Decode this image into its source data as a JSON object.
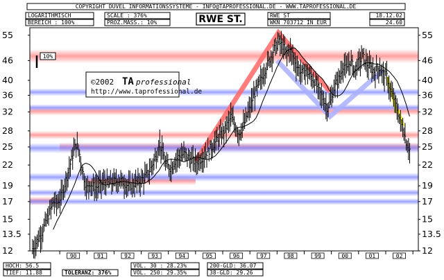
{
  "header": {
    "copyright": "COPYRIGHT  DÜVEL INFORMATIONSSYSTEME  -  INFO@TAPROFESSIONAL.DE  -  WWW.TAPROFESSIONAL.DE",
    "scale_type": "LOGARITHMISCH",
    "range_label": "BEREICH  :  100%",
    "scale": "SCALE  :  376%",
    "prozmass": "PROZ.MASS.:  10%",
    "symbol": "RWE ST.",
    "ticker": "RWE ST",
    "wkn": "WKN 703712    IN EUR",
    "date": "18.12.02",
    "last_price": "24.60"
  },
  "chart_data": {
    "type": "candlestick",
    "ylim": [
      12,
      58
    ],
    "log_scale": true,
    "yticks": [
      "55",
      "46",
      "40",
      "36",
      "32",
      "28",
      "25",
      "22",
      "19",
      "17",
      "15",
      "13.5",
      "12"
    ],
    "ytick_values": [
      55,
      46,
      40,
      36,
      32,
      28,
      25,
      22,
      19,
      17,
      15,
      13.5,
      12
    ],
    "xtick_labels": [
      "90",
      "91",
      "92",
      "93",
      "94",
      "95",
      "96",
      "97",
      "98",
      "99",
      "00",
      "01",
      "02"
    ],
    "xtick_years": [
      1990,
      1991,
      1992,
      1993,
      1994,
      1995,
      1996,
      1997,
      1998,
      1999,
      2000,
      2001,
      2002
    ],
    "x_range": [
      1988.9,
      2003.2
    ],
    "scale_box_label": "10%",
    "watermark_year": "©2002",
    "watermark_brand": "TA",
    "watermark_brand_suffix": "professional",
    "watermark_url": "http://www.taprofessional.de",
    "price_keypoints": [
      [
        1989.0,
        12.2
      ],
      [
        1989.15,
        12.8
      ],
      [
        1989.3,
        13.5
      ],
      [
        1989.45,
        14.4
      ],
      [
        1989.6,
        15.5
      ],
      [
        1989.75,
        17.0
      ],
      [
        1989.9,
        16.8
      ],
      [
        1990.05,
        17.6
      ],
      [
        1990.2,
        19.5
      ],
      [
        1990.35,
        21.5
      ],
      [
        1990.5,
        24.0
      ],
      [
        1990.6,
        25.5
      ],
      [
        1990.7,
        24.5
      ],
      [
        1990.8,
        22.0
      ],
      [
        1990.9,
        20.0
      ],
      [
        1991.0,
        18.5
      ],
      [
        1991.1,
        19.5
      ],
      [
        1991.2,
        19.0
      ],
      [
        1991.35,
        18.8
      ],
      [
        1991.5,
        19.2
      ],
      [
        1991.65,
        19.5
      ],
      [
        1991.8,
        19.3
      ],
      [
        1992.0,
        19.6
      ],
      [
        1992.2,
        19.8
      ],
      [
        1992.4,
        19.4
      ],
      [
        1992.55,
        18.9
      ],
      [
        1992.7,
        19.2
      ],
      [
        1992.85,
        19.5
      ],
      [
        1993.0,
        19.8
      ],
      [
        1993.2,
        20.5
      ],
      [
        1993.35,
        21.5
      ],
      [
        1993.5,
        23.0
      ],
      [
        1993.6,
        24.0
      ],
      [
        1993.65,
        26.0
      ],
      [
        1993.75,
        24.5
      ],
      [
        1993.9,
        22.0
      ],
      [
        1994.1,
        21.5
      ],
      [
        1994.25,
        22.8
      ],
      [
        1994.4,
        23.5
      ],
      [
        1994.6,
        23.8
      ],
      [
        1994.8,
        23.0
      ],
      [
        1995.0,
        22.4
      ],
      [
        1995.2,
        23.0
      ],
      [
        1995.4,
        24.0
      ],
      [
        1995.6,
        25.0
      ],
      [
        1995.8,
        26.5
      ],
      [
        1996.0,
        27.5
      ],
      [
        1996.15,
        29.0
      ],
      [
        1996.3,
        31.0
      ],
      [
        1996.45,
        29.0
      ],
      [
        1996.6,
        27.5
      ],
      [
        1996.8,
        29.5
      ],
      [
        1997.0,
        33.0
      ],
      [
        1997.15,
        36.0
      ],
      [
        1997.3,
        38.5
      ],
      [
        1997.45,
        41.0
      ],
      [
        1997.6,
        44.0
      ],
      [
        1997.75,
        47.0
      ],
      [
        1997.9,
        50.0
      ],
      [
        1998.05,
        52.5
      ],
      [
        1998.2,
        51.0
      ],
      [
        1998.35,
        48.0
      ],
      [
        1998.45,
        50.0
      ],
      [
        1998.6,
        47.0
      ],
      [
        1998.75,
        44.0
      ],
      [
        1998.9,
        42.0
      ],
      [
        1999.05,
        43.0
      ],
      [
        1999.2,
        41.5
      ],
      [
        1999.4,
        39.5
      ],
      [
        1999.55,
        37.0
      ],
      [
        1999.7,
        35.0
      ],
      [
        1999.85,
        33.0
      ],
      [
        2000.0,
        35.0
      ],
      [
        2000.1,
        38.0
      ],
      [
        2000.3,
        41.0
      ],
      [
        2000.45,
        45.0
      ],
      [
        2000.55,
        43.0
      ],
      [
        2000.7,
        46.0
      ],
      [
        2000.85,
        43.0
      ],
      [
        2001.0,
        45.5
      ],
      [
        2001.15,
        47.5
      ],
      [
        2001.3,
        45.0
      ],
      [
        2001.45,
        43.5
      ],
      [
        2001.6,
        42.5
      ],
      [
        2001.75,
        44.0
      ],
      [
        2001.9,
        42.0
      ],
      [
        2002.05,
        41.0
      ],
      [
        2002.15,
        37.5
      ],
      [
        2002.3,
        35.0
      ],
      [
        2002.45,
        32.0
      ],
      [
        2002.55,
        29.5
      ],
      [
        2002.65,
        28.5
      ],
      [
        2002.75,
        26.0
      ],
      [
        2002.82,
        25.0
      ],
      [
        2002.88,
        24.6
      ]
    ],
    "trend_lines": [
      {
        "color": "#ff6666",
        "points": [
          [
            1995.0,
            22.6
          ],
          [
            1998.05,
            56.0
          ],
          [
            1999.95,
            37.0
          ]
        ]
      },
      {
        "color": "#aab0ff",
        "points": [
          [
            1998.0,
            46.0
          ],
          [
            1999.95,
            31.0
          ],
          [
            2001.9,
            43.0
          ]
        ]
      },
      {
        "color": "#ffff00",
        "points": [
          [
            2002.05,
            41.0
          ],
          [
            2002.4,
            32.0
          ]
        ]
      },
      {
        "color": "#ffff00",
        "points": [
          [
            2002.45,
            32.5
          ],
          [
            2002.65,
            29.0
          ]
        ]
      }
    ],
    "bands_red": [
      [
        1988.9,
        2003.2,
        47.5,
        2.6
      ],
      [
        1988.9,
        2003.2,
        32.2,
        1.1
      ],
      [
        1988.9,
        2003.2,
        27.2,
        0.9
      ],
      [
        1990.0,
        2003.2,
        25.0,
        0.9
      ],
      [
        1991.0,
        1995.0,
        19.7,
        0.7
      ],
      [
        1988.9,
        1990.0,
        17.1,
        0.6
      ]
    ],
    "bands_blue": [
      [
        1988.9,
        2003.2,
        33.0,
        0.9
      ],
      [
        1988.9,
        2003.2,
        24.8,
        1.0
      ],
      [
        1988.9,
        2003.2,
        20.2,
        0.7
      ],
      [
        1988.9,
        2003.2,
        18.1,
        0.5
      ],
      [
        1988.9,
        2003.2,
        17.0,
        0.45
      ],
      [
        1988.9,
        2003.2,
        36.8,
        1.1
      ]
    ]
  },
  "stats": {
    "hoch": "HOCH: 56.5",
    "tief": "TIEF: 11.88",
    "toleranz": "TOLERANZ: 376%",
    "vol30": "VOL. 30  : 28.23%",
    "vol250": "VOL. 250: 29.35%",
    "gld200": "200-GLD: 36.07",
    "gld38": "38-GLD: 29.26"
  }
}
